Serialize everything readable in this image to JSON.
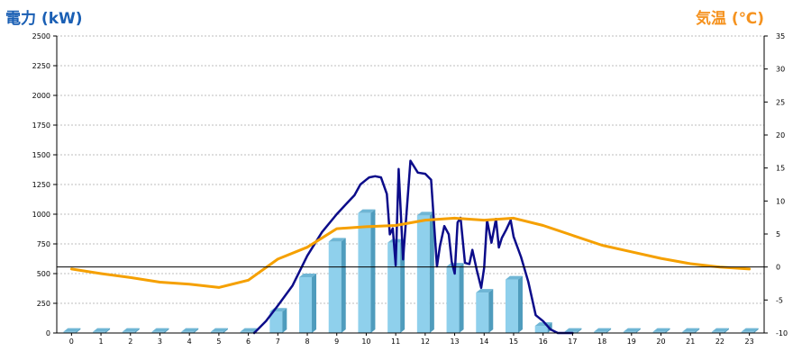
{
  "chart_data": {
    "type": "bar",
    "categories": [
      "0",
      "1",
      "2",
      "3",
      "4",
      "5",
      "6",
      "7",
      "8",
      "9",
      "10",
      "11",
      "12",
      "13",
      "14",
      "15",
      "16",
      "17",
      "18",
      "19",
      "20",
      "21",
      "22",
      "23"
    ],
    "y_left_title": "電力 (kW)",
    "y_right_title": "気温 (℃)",
    "y_left_ticks": [
      "0",
      "250",
      "500",
      "750",
      "1000",
      "1250",
      "1500",
      "1750",
      "2000",
      "2250",
      "2500"
    ],
    "y_right_ticks": [
      "-10",
      "-5",
      "0",
      "5",
      "10",
      "15",
      "20",
      "25",
      "30",
      "35"
    ],
    "ylim_left": [
      0,
      2500
    ],
    "ylim_right": [
      -10,
      35
    ],
    "grid": true,
    "zero_line_right": 0,
    "series": [
      {
        "type": "bar",
        "axis": "left",
        "values": [
          10,
          10,
          10,
          10,
          10,
          10,
          10,
          180,
          470,
          770,
          1010,
          760,
          990,
          560,
          340,
          450,
          60,
          10,
          10,
          10,
          10,
          10,
          10,
          10
        ]
      },
      {
        "type": "line",
        "axis": "left",
        "x": [
          6.2,
          6.6,
          7.0,
          7.5,
          8.0,
          8.5,
          9.0,
          9.3,
          9.6,
          9.8,
          10.0,
          10.1,
          10.3,
          10.5,
          10.7,
          10.8,
          10.9,
          11.0,
          11.1,
          11.25,
          11.5,
          11.75,
          12.0,
          12.2,
          12.4,
          12.5,
          12.65,
          12.8,
          12.9,
          13.0,
          13.1,
          13.2,
          13.35,
          13.5,
          13.6,
          13.75,
          13.9,
          14.0,
          14.1,
          14.25,
          14.4,
          14.5,
          14.6,
          14.75,
          14.9,
          15.0,
          15.25,
          15.5,
          15.75,
          16.0,
          16.25,
          16.5,
          17.0
        ],
        "values": [
          0,
          100,
          230,
          400,
          650,
          850,
          1000,
          1080,
          1160,
          1250,
          1290,
          1310,
          1320,
          1310,
          1170,
          830,
          880,
          570,
          1380,
          620,
          1450,
          1350,
          1340,
          1290,
          560,
          730,
          900,
          830,
          600,
          500,
          930,
          970,
          590,
          580,
          700,
          530,
          380,
          550,
          950,
          760,
          960,
          720,
          800,
          870,
          950,
          810,
          640,
          430,
          150,
          100,
          30,
          0,
          0
        ],
        "color": "#0c0c8a"
      },
      {
        "type": "line",
        "axis": "right",
        "values": [
          -0.3,
          -1,
          -1.6,
          -2.3,
          -2.6,
          -3.1,
          -2,
          1.2,
          3,
          5.8,
          6.1,
          6.3,
          7.1,
          7.4,
          7.1,
          7.4,
          6.3,
          4.8,
          3.3,
          2.3,
          1.3,
          0.5,
          0,
          -0.3
        ],
        "color": "#f5a000"
      }
    ]
  }
}
